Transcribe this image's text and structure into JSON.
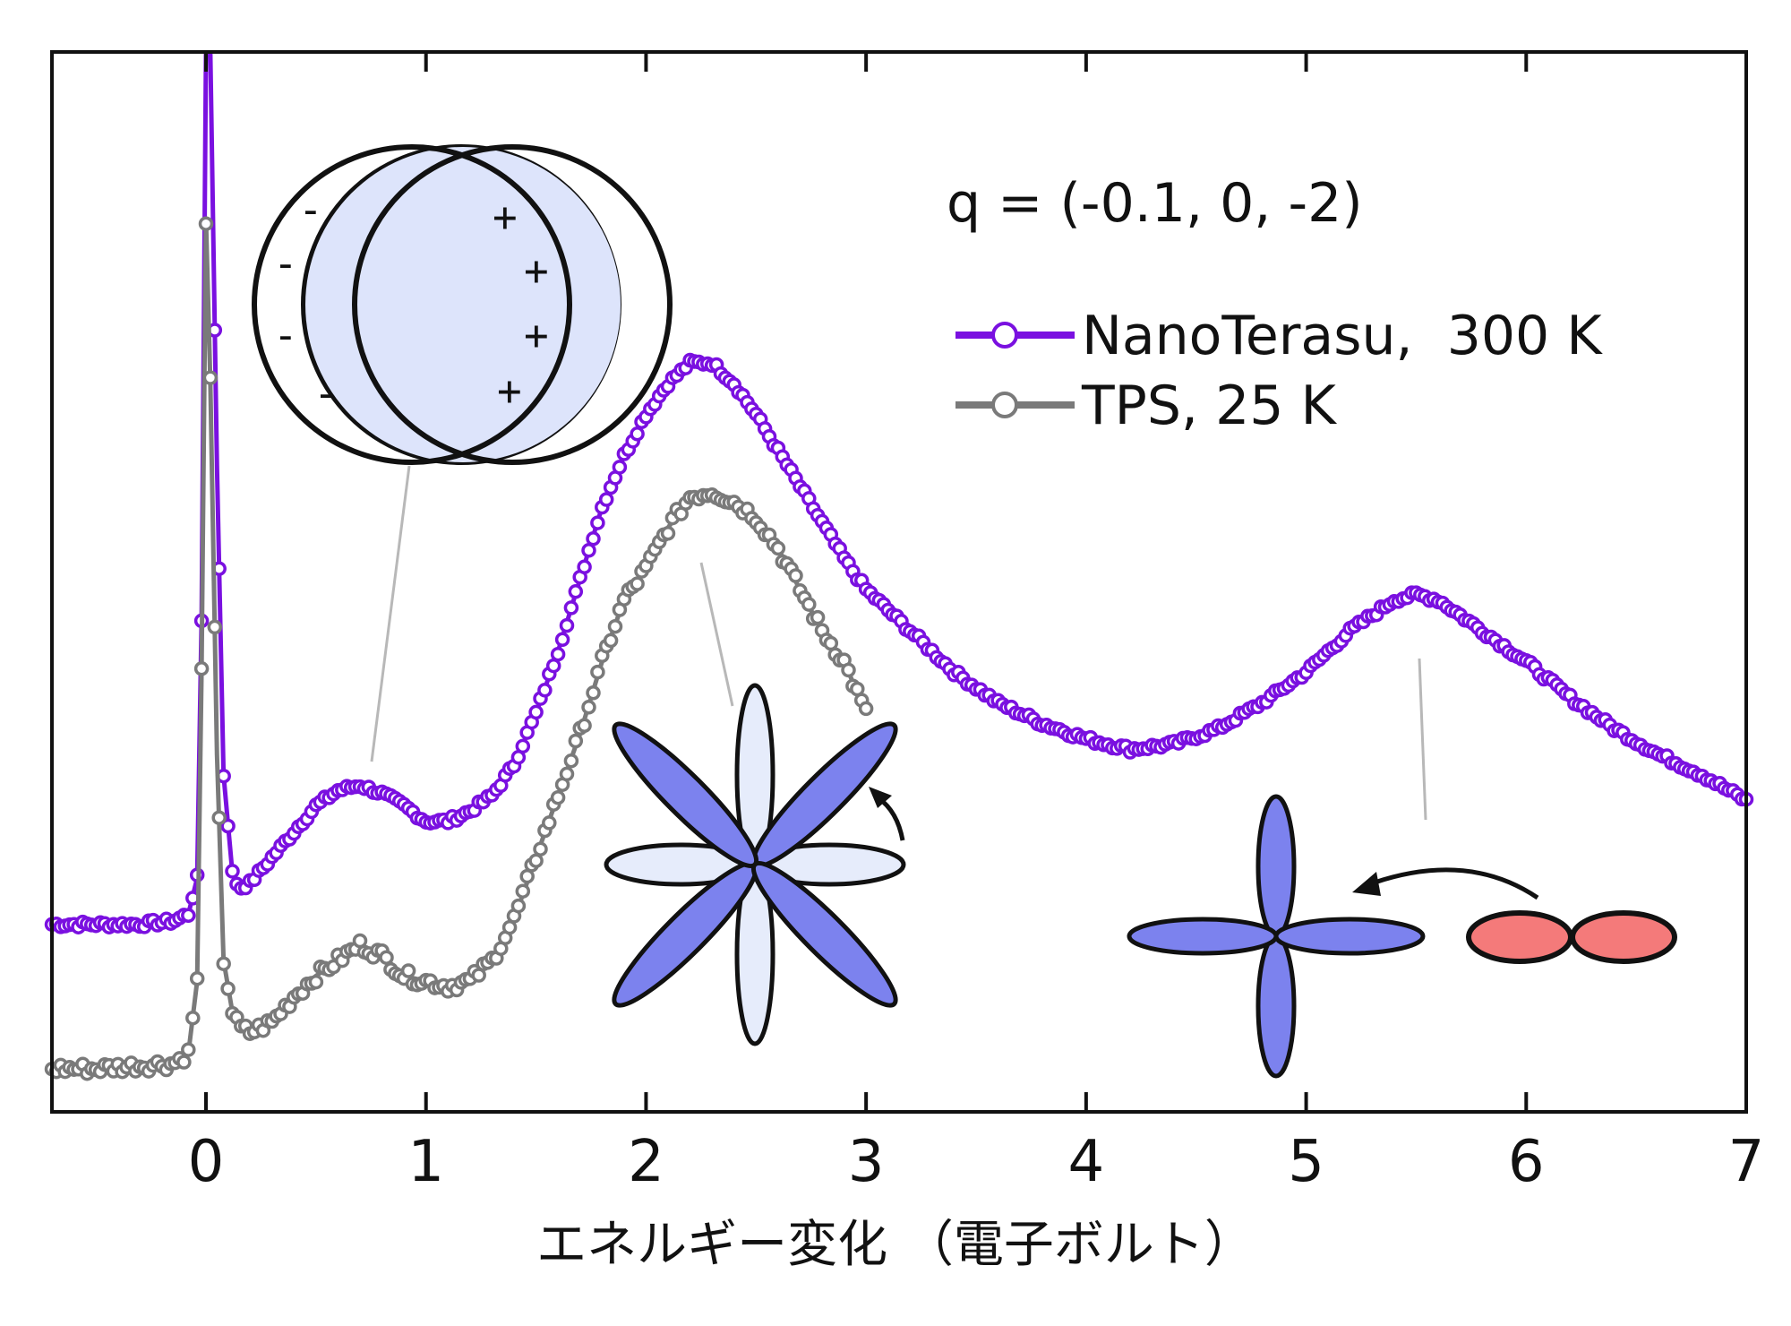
{
  "chart_data": {
    "type": "line",
    "title": "",
    "xlabel": "エネルギー変化 （電子ボルト）",
    "ylabel": "",
    "xlim": [
      -0.7,
      7.0
    ],
    "ylim": [
      0,
      1.0
    ],
    "x_ticks": [
      0,
      1,
      2,
      3,
      4,
      5,
      6,
      7
    ],
    "x_tick_labels": [
      "0",
      "1",
      "2",
      "3",
      "4",
      "5",
      "6",
      "7"
    ],
    "y_ticks_labeled": false,
    "annotation": "q = (-0.1, 0, -2)",
    "legend_position": "top-right",
    "series": [
      {
        "name": "NanoTerasu,  300 K",
        "color": "#7a10e0",
        "marker": "open-circle",
        "x": [
          -0.7,
          -0.5,
          -0.3,
          -0.15,
          -0.08,
          -0.04,
          -0.02,
          0.0,
          0.02,
          0.05,
          0.08,
          0.12,
          0.15,
          0.2,
          0.3,
          0.4,
          0.5,
          0.6,
          0.7,
          0.8,
          0.9,
          1.0,
          1.1,
          1.2,
          1.3,
          1.4,
          1.5,
          1.6,
          1.7,
          1.8,
          1.9,
          2.0,
          2.1,
          2.2,
          2.3,
          2.4,
          2.5,
          2.6,
          2.7,
          2.8,
          2.9,
          3.0,
          3.2,
          3.4,
          3.6,
          3.8,
          4.0,
          4.2,
          4.4,
          4.6,
          4.8,
          5.0,
          5.2,
          5.4,
          5.5,
          5.6,
          5.7,
          5.8,
          6.0,
          6.2,
          6.4,
          6.6,
          6.8,
          7.0
        ],
        "y": [
          0.155,
          0.155,
          0.155,
          0.158,
          0.165,
          0.2,
          0.45,
          1.0,
          1.0,
          0.6,
          0.3,
          0.205,
          0.19,
          0.195,
          0.22,
          0.245,
          0.27,
          0.285,
          0.29,
          0.282,
          0.27,
          0.255,
          0.255,
          0.265,
          0.28,
          0.31,
          0.36,
          0.42,
          0.49,
          0.56,
          0.61,
          0.65,
          0.68,
          0.7,
          0.7,
          0.68,
          0.65,
          0.615,
          0.58,
          0.545,
          0.51,
          0.48,
          0.44,
          0.4,
          0.37,
          0.35,
          0.335,
          0.325,
          0.33,
          0.345,
          0.37,
          0.4,
          0.44,
          0.47,
          0.475,
          0.47,
          0.455,
          0.44,
          0.41,
          0.375,
          0.345,
          0.32,
          0.3,
          0.275
        ]
      },
      {
        "name": "TPS, 25 K",
        "color": "#7a7a7a",
        "marker": "open-circle",
        "x": [
          -0.7,
          -0.5,
          -0.3,
          -0.15,
          -0.08,
          -0.04,
          -0.02,
          0.0,
          0.02,
          0.05,
          0.08,
          0.12,
          0.15,
          0.2,
          0.3,
          0.4,
          0.5,
          0.6,
          0.7,
          0.8,
          0.9,
          1.0,
          1.1,
          1.2,
          1.3,
          1.4,
          1.5,
          1.6,
          1.7,
          1.8,
          1.9,
          2.0,
          2.1,
          2.2,
          2.3,
          2.4,
          2.5,
          2.6,
          2.7,
          2.8,
          2.9,
          3.0
        ],
        "y": [
          0.015,
          0.015,
          0.018,
          0.02,
          0.03,
          0.1,
          0.4,
          0.84,
          0.68,
          0.32,
          0.12,
          0.07,
          0.055,
          0.05,
          0.06,
          0.085,
          0.105,
          0.12,
          0.135,
          0.125,
          0.105,
          0.1,
          0.095,
          0.1,
          0.12,
          0.16,
          0.22,
          0.28,
          0.34,
          0.41,
          0.47,
          0.5,
          0.54,
          0.57,
          0.575,
          0.565,
          0.55,
          0.52,
          0.48,
          0.44,
          0.41,
          0.36
        ]
      }
    ]
  }
}
